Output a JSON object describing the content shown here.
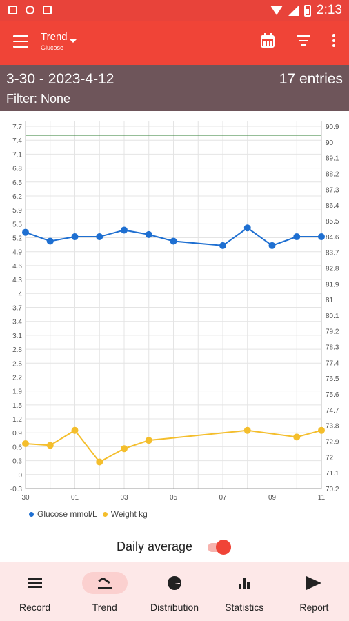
{
  "status_bar": {
    "time": "2:13"
  },
  "app_bar": {
    "title": "Trend",
    "subtitle": "Glucose"
  },
  "summary": {
    "range": "3-30 - 2023-4-12",
    "entries": "17 entries",
    "filter": "Filter: None"
  },
  "chart_data": {
    "type": "line",
    "categories": [
      "30",
      "",
      "01",
      "",
      "03",
      "",
      "05",
      "",
      "07",
      "",
      "09",
      "",
      "11"
    ],
    "x_tick_labels": [
      "30",
      "01",
      "03",
      "05",
      "07",
      "09",
      "11"
    ],
    "left_axis_ticks": [
      "7.7",
      "7.4",
      "7.1",
      "6.8",
      "6.5",
      "6.2",
      "5.9",
      "5.5",
      "5.2",
      "4.9",
      "4.6",
      "4.3",
      "4",
      "3.7",
      "3.4",
      "3.1",
      "2.8",
      "2.5",
      "2.2",
      "1.9",
      "1.5",
      "1.2",
      "0.9",
      "0.6",
      "0.3",
      "0",
      "-0.3"
    ],
    "right_axis_ticks": [
      "90.9",
      "90",
      "89.1",
      "88.2",
      "87.3",
      "86.4",
      "85.5",
      "84.6",
      "83.7",
      "82.8",
      "81.9",
      "81",
      "80.1",
      "79.2",
      "78.3",
      "77.4",
      "76.5",
      "75.6",
      "74.7",
      "73.8",
      "72.9",
      "72",
      "71.1",
      "70.2"
    ],
    "ylim": [
      -0.3,
      7.9
    ],
    "y2lim": [
      69.4,
      91.2
    ],
    "series": [
      {
        "name": "Glucose mmol/L",
        "axis": "left",
        "color": "#1e6fd1",
        "points": [
          [
            0,
            5.5
          ],
          [
            1,
            5.3
          ],
          [
            2,
            5.4
          ],
          [
            3,
            5.4
          ],
          [
            4,
            5.55
          ],
          [
            5,
            5.45
          ],
          [
            6,
            5.3
          ],
          [
            8,
            5.2
          ],
          [
            9,
            5.6
          ],
          [
            10,
            5.2
          ],
          [
            11,
            5.4
          ],
          [
            12,
            5.4
          ]
        ]
      },
      {
        "name": "Weight kg",
        "axis": "right",
        "color": "#f4be2c",
        "points": [
          [
            0,
            72.1
          ],
          [
            1,
            72
          ],
          [
            2,
            72.9
          ],
          [
            3,
            71
          ],
          [
            4,
            71.8
          ],
          [
            5,
            72.3
          ],
          [
            9,
            72.9
          ],
          [
            11,
            72.5
          ],
          [
            12,
            72.9
          ]
        ]
      }
    ],
    "reference_line": {
      "value": 7.7,
      "color": "#2e7d32"
    },
    "grid": true,
    "legend": "bottom-left"
  },
  "daily_average": {
    "label": "Daily average",
    "enabled": true
  },
  "nav": {
    "items": [
      {
        "label": "Record",
        "icon": "list-icon"
      },
      {
        "label": "Trend",
        "icon": "trend-icon"
      },
      {
        "label": "Distribution",
        "icon": "pie-chart-icon"
      },
      {
        "label": "Statistics",
        "icon": "bar-chart-icon"
      },
      {
        "label": "Report",
        "icon": "send-icon"
      }
    ],
    "active": "Trend"
  },
  "colors": {
    "accent": "#f04437",
    "summary_bg": "#6e555a",
    "nav_bg": "#fde8e8"
  }
}
